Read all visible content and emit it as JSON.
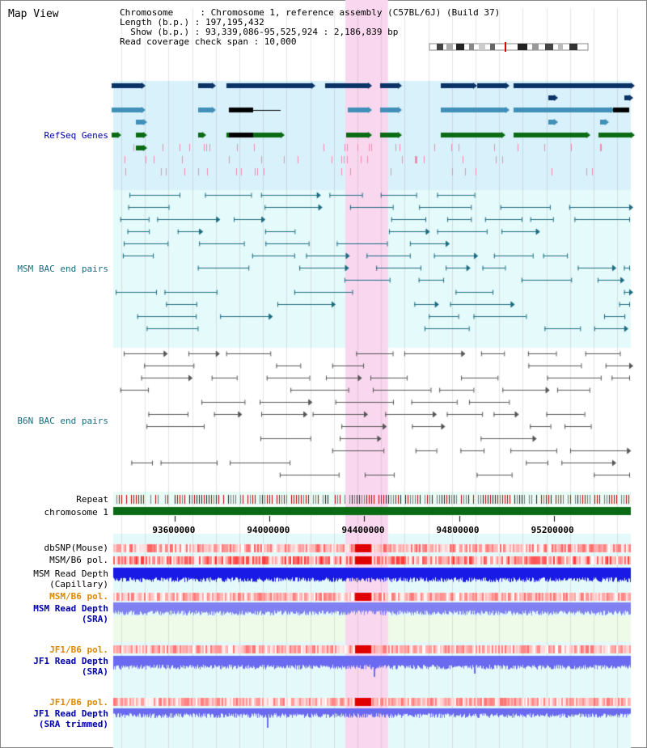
{
  "view_title": "Map View",
  "info": {
    "chromosome_line": "Chromosome     : Chromosome 1, reference assembly (C57BL/6J) (Build 37)",
    "length_line": "Length (b.p.) : 197,195,432",
    "show_line": "  Show (b.p.) : 93,339,086-95,525,924 : 2,186,839 bp",
    "span_line": "Read coverage check span : 10,000"
  },
  "tracks": {
    "refseq": "RefSeq Genes",
    "msm_bac": "MSM BAC end pairs",
    "b6n_bac": "B6N BAC end pairs",
    "repeat": "Repeat",
    "chromosome": "chromosome 1",
    "dbsnp": "dbSNP(Mouse)",
    "msm_b6_pol": "MSM/B6 pol.",
    "msm_depth_cap": "MSM Read Depth\n(Capillary)",
    "msm_b6_pol_2": "MSM/B6 pol.",
    "msm_depth_sra": "MSM Read Depth\n(SRA)",
    "jf1_b6_pol": "JF1/B6 pol.",
    "jf1_depth_sra": "JF1 Read Depth\n(SRA)",
    "jf1_b6_pol_2": "JF1/B6 pol.",
    "jf1_depth_trim": "JF1 Read Depth\n(SRA trimmed)"
  },
  "axis": {
    "range_bp": [
      93339086,
      95525924
    ],
    "ticks": [
      "93600000",
      "94000000",
      "94400000",
      "94800000",
      "95200000"
    ]
  },
  "highlight_region_bp": [
    94320000,
    94500000
  ],
  "colors": {
    "refseq_bg": "#d9f1fb",
    "bac_bg": "#e5fafa",
    "gene_dark": "#0b3366",
    "gene_mid": "#3f8fb8",
    "gene_green": "#0a6b14",
    "msm_bac": "#1a6a80",
    "b6n_bac": "#555555",
    "highlight": "#f9d7ef",
    "label_teal": "#1a6a80",
    "label_blue": "#0000aa",
    "label_orange": "#dd8800",
    "chromosome": "#0a6b14"
  }
}
